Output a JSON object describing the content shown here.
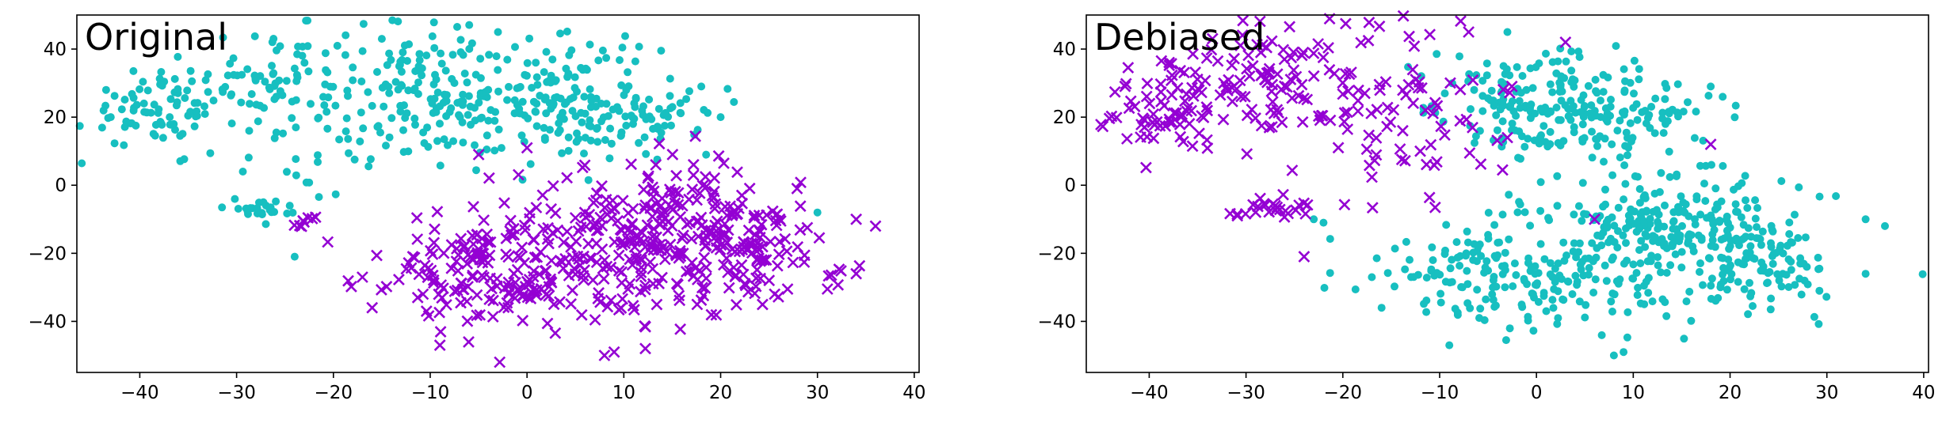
{
  "colors": {
    "circle_series": "#17BFC0",
    "cross_series": "#9400D3",
    "axes": "#000000",
    "background": "#ffffff"
  },
  "chart_data": [
    {
      "type": "scatter",
      "title": "Original",
      "xlabel": "",
      "ylabel": "",
      "xlim": [
        -46.5,
        40.5
      ],
      "ylim": [
        -55,
        50
      ],
      "xticks": [
        -40,
        -30,
        -20,
        -10,
        0,
        10,
        20,
        30,
        40
      ],
      "yticks": [
        -40,
        -20,
        0,
        20,
        40
      ],
      "grid": false,
      "series": [
        {
          "marker": "circle",
          "color": "#17BFC0",
          "clusters": [
            {
              "cx": -38,
              "cy": 23,
              "sx": 4,
              "sy": 6,
              "n": 80
            },
            {
              "cx": -25,
              "cy": 28,
              "sx": 4,
              "sy": 10,
              "n": 100
            },
            {
              "cx": -10,
              "cy": 26,
              "sx": 5,
              "sy": 10,
              "n": 150
            },
            {
              "cx": 4,
              "cy": 25,
              "sx": 5,
              "sy": 9,
              "n": 150
            },
            {
              "cx": 12,
              "cy": 20,
              "sx": 4,
              "sy": 5,
              "n": 50
            },
            {
              "cx": -28,
              "cy": -7,
              "sx": 2,
              "sy": 1.5,
              "n": 25
            }
          ],
          "points": [
            [
              -24,
              -21
            ],
            [
              -43,
              20
            ],
            [
              -3,
              45
            ],
            [
              18,
              29
            ],
            [
              20,
              20
            ],
            [
              -15,
              43
            ],
            [
              30,
              -8
            ]
          ]
        },
        {
          "marker": "cross",
          "color": "#9400D3",
          "clusters": [
            {
              "cx": -3,
              "cy": -25,
              "sx": 6,
              "sy": 9,
              "n": 180
            },
            {
              "cx": 14,
              "cy": -15,
              "sx": 6,
              "sy": 11,
              "n": 280
            },
            {
              "cx": 24,
              "cy": -20,
              "sx": 4,
              "sy": 8,
              "n": 80
            },
            {
              "cx": -23,
              "cy": -11,
              "sx": 1,
              "sy": 1.2,
              "n": 8
            }
          ],
          "points": [
            [
              -16,
              -36
            ],
            [
              -17,
              -27
            ],
            [
              -9,
              -47
            ],
            [
              8,
              -50
            ],
            [
              9,
              -49
            ],
            [
              34,
              -10
            ],
            [
              36,
              -12
            ],
            [
              34,
              -26
            ],
            [
              -5,
              9
            ],
            [
              0,
              11
            ]
          ]
        }
      ]
    },
    {
      "type": "scatter",
      "title": "Debiased",
      "xlabel": "",
      "ylabel": "",
      "xlim": [
        -46.5,
        40.5
      ],
      "ylim": [
        -55,
        50
      ],
      "xticks": [
        -40,
        -30,
        -20,
        -10,
        0,
        10,
        20,
        30,
        40
      ],
      "yticks": [
        -40,
        -20,
        0,
        20,
        40
      ],
      "grid": false,
      "series": [
        {
          "marker": "circle",
          "color": "#17BFC0",
          "clusters": [
            {
              "cx": 0,
              "cy": 25,
              "sx": 5,
              "sy": 8,
              "n": 180
            },
            {
              "cx": 10,
              "cy": 20,
              "sx": 4,
              "sy": 5,
              "n": 60
            },
            {
              "cx": -3,
              "cy": -25,
              "sx": 6,
              "sy": 9,
              "n": 180
            },
            {
              "cx": 14,
              "cy": -15,
              "sx": 6,
              "sy": 11,
              "n": 280
            },
            {
              "cx": 24,
              "cy": -20,
              "sx": 4,
              "sy": 8,
              "n": 80
            }
          ],
          "points": [
            [
              -16,
              -36
            ],
            [
              -17,
              -27
            ],
            [
              -9,
              -47
            ],
            [
              8,
              -50
            ],
            [
              9,
              -49
            ],
            [
              34,
              -10
            ],
            [
              36,
              -12
            ],
            [
              34,
              -26
            ],
            [
              -23,
              -10
            ],
            [
              -22,
              -11
            ],
            [
              -3,
              45
            ],
            [
              18,
              29
            ]
          ]
        },
        {
          "marker": "cross",
          "color": "#9400D3",
          "clusters": [
            {
              "cx": -38,
              "cy": 23,
              "sx": 4,
              "sy": 6,
              "n": 80
            },
            {
              "cx": -27,
              "cy": 30,
              "sx": 4,
              "sy": 9,
              "n": 90
            },
            {
              "cx": -15,
              "cy": 22,
              "sx": 5,
              "sy": 12,
              "n": 80
            },
            {
              "cx": -27,
              "cy": -7,
              "sx": 2,
              "sy": 1.5,
              "n": 25
            }
          ],
          "points": [
            [
              -24,
              -21
            ],
            [
              -7,
              45
            ],
            [
              3,
              42
            ],
            [
              18,
              12
            ],
            [
              6,
              -10
            ],
            [
              -3,
              14
            ],
            [
              -12,
              10
            ]
          ]
        }
      ]
    }
  ]
}
